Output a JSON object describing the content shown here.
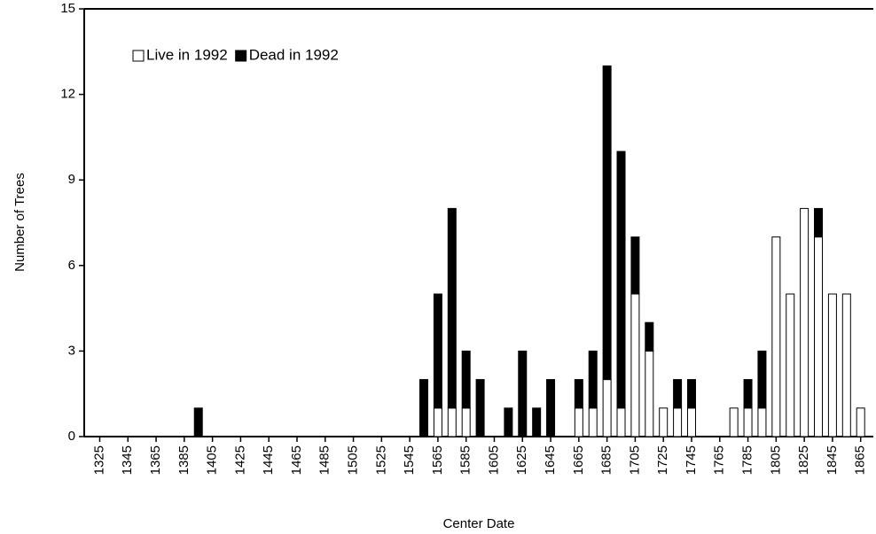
{
  "chart_data": {
    "type": "bar",
    "stacked": true,
    "x_label": "Center Date",
    "y_label": "Number of Trees",
    "x": [
      1395,
      1555,
      1565,
      1575,
      1585,
      1595,
      1615,
      1625,
      1635,
      1645,
      1665,
      1675,
      1685,
      1695,
      1705,
      1715,
      1725,
      1735,
      1745,
      1775,
      1785,
      1795,
      1805,
      1815,
      1825,
      1835,
      1845,
      1855,
      1865
    ],
    "series": [
      {
        "name": "Live in 1992",
        "color": "#ffffff",
        "values": [
          0,
          0,
          1,
          1,
          1,
          0,
          0,
          0,
          0,
          0,
          1,
          1,
          2,
          1,
          5,
          3,
          1,
          1,
          1,
          1,
          1,
          1,
          7,
          5,
          8,
          7,
          5,
          5,
          1
        ]
      },
      {
        "name": "Dead in 1992",
        "color": "#000000",
        "values": [
          1,
          2,
          4,
          7,
          2,
          2,
          1,
          3,
          1,
          2,
          1,
          2,
          11,
          9,
          2,
          1,
          0,
          1,
          1,
          0,
          1,
          2,
          0,
          0,
          0,
          1,
          0,
          0,
          0
        ]
      }
    ],
    "xlim": [
      1314,
      1874
    ],
    "ylim": [
      0,
      15
    ],
    "xticks": [
      1325,
      1345,
      1365,
      1385,
      1405,
      1425,
      1445,
      1465,
      1485,
      1505,
      1525,
      1545,
      1565,
      1585,
      1605,
      1625,
      1645,
      1665,
      1685,
      1705,
      1725,
      1745,
      1765,
      1785,
      1805,
      1825,
      1845,
      1865
    ],
    "yticks": [
      0,
      3,
      6,
      9,
      12,
      15
    ],
    "legend": "top-left"
  }
}
